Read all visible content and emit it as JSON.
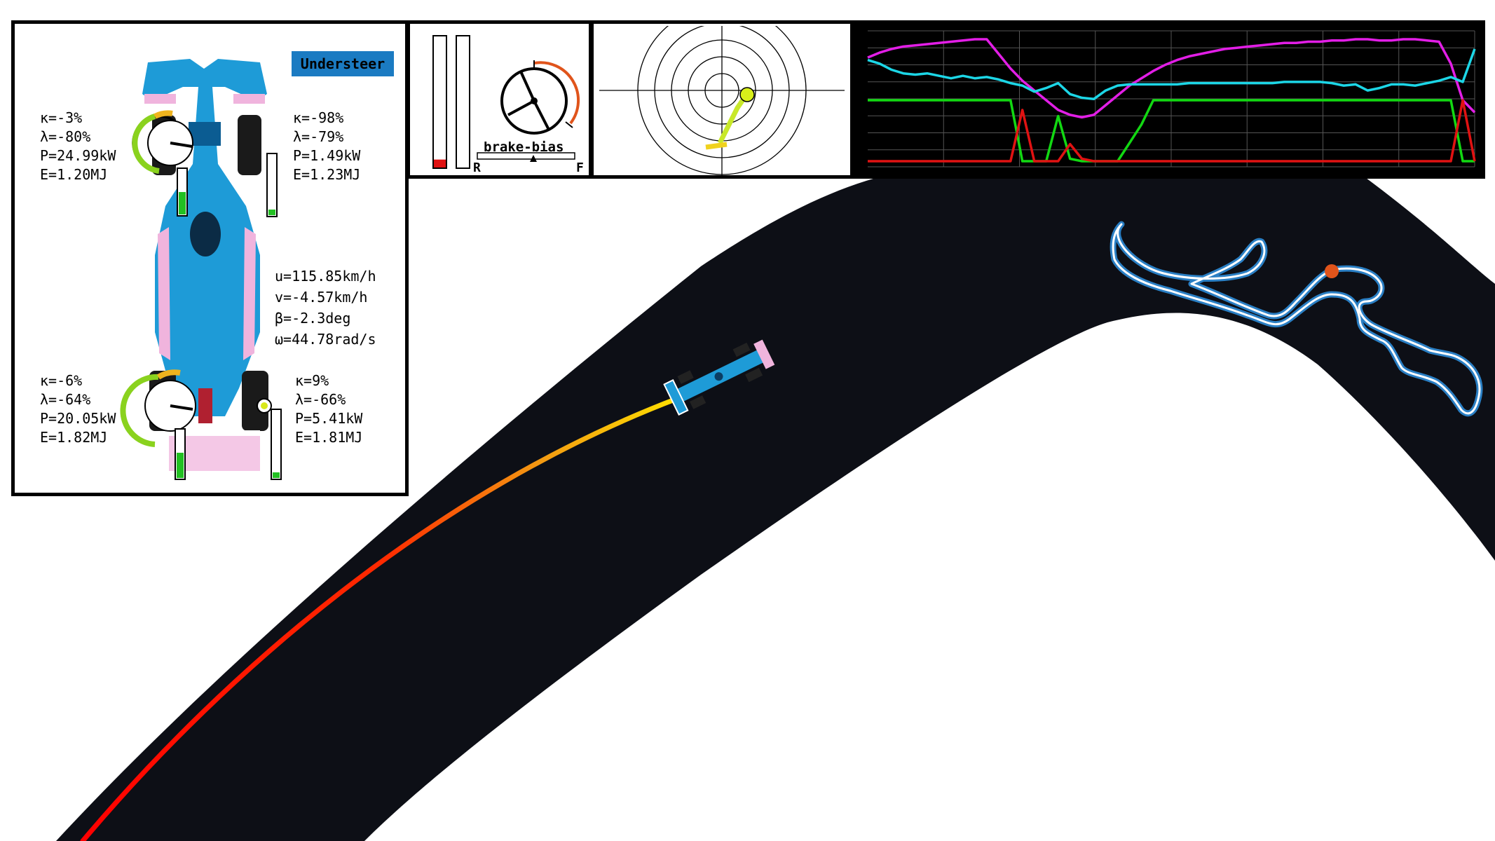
{
  "understeer_badge": "Understeer",
  "tires": {
    "front_left": {
      "kappa": "κ=-3%",
      "lambda": "λ=-80%",
      "power": "P=24.99kW",
      "energy": "E=1.20MJ",
      "grip": 0.55
    },
    "front_right": {
      "kappa": "κ=-98%",
      "lambda": "λ=-79%",
      "power": "P=1.49kW",
      "energy": "E=1.23MJ",
      "grip": 0.0
    },
    "rear_left": {
      "kappa": "κ=-6%",
      "lambda": "λ=-64%",
      "power": "P=20.05kW",
      "energy": "E=1.82MJ",
      "grip": 0.45
    },
    "rear_right": {
      "kappa": "κ=9%",
      "lambda": "λ=-66%",
      "power": "P=5.41kW",
      "energy": "E=1.81MJ",
      "grip": 0.08
    }
  },
  "vehicle_state": {
    "u": "u=115.85km/h",
    "v": "v=-4.57km/h",
    "beta": "β=-2.3deg",
    "omega": "ω=44.78rad/s"
  },
  "pedals": {
    "brake_level": 0.06,
    "throttle_level": 0.0,
    "brake_bias_label": "brake-bias",
    "rear_label": "R",
    "front_label": "F"
  },
  "colors": {
    "track": "#0d0f16",
    "car_blue": "#1e9bd7",
    "car_pink": "#f0b4dd",
    "minimap_track": "#2a7fc4",
    "minimap_marker": "#e0541b",
    "badge": "#1b7bc2",
    "telemetry_magenta": "#e21ee6",
    "telemetry_cyan": "#1cd6e6",
    "telemetry_green": "#12d812",
    "telemetry_red": "#e01212"
  },
  "telemetry_series": [
    {
      "color": "#e21ee6",
      "values": [
        0.85,
        0.89,
        0.92,
        0.94,
        0.95,
        0.96,
        0.97,
        0.98,
        0.99,
        1.0,
        1.0,
        0.88,
        0.76,
        0.66,
        0.58,
        0.5,
        0.42,
        0.38,
        0.36,
        0.38,
        0.46,
        0.54,
        0.62,
        0.68,
        0.74,
        0.79,
        0.83,
        0.86,
        0.88,
        0.9,
        0.92,
        0.93,
        0.94,
        0.95,
        0.96,
        0.97,
        0.97,
        0.98,
        0.98,
        0.99,
        0.99,
        1.0,
        1.0,
        0.99,
        0.99,
        1.0,
        1.0,
        0.99,
        0.98,
        0.8,
        0.5,
        0.4
      ]
    },
    {
      "color": "#1cd6e6",
      "values": [
        0.83,
        0.8,
        0.75,
        0.72,
        0.71,
        0.72,
        0.7,
        0.68,
        0.7,
        0.68,
        0.69,
        0.67,
        0.64,
        0.62,
        0.57,
        0.6,
        0.64,
        0.55,
        0.52,
        0.51,
        0.58,
        0.62,
        0.63,
        0.63,
        0.63,
        0.63,
        0.63,
        0.64,
        0.64,
        0.64,
        0.64,
        0.64,
        0.64,
        0.64,
        0.64,
        0.65,
        0.65,
        0.65,
        0.65,
        0.64,
        0.62,
        0.63,
        0.58,
        0.6,
        0.63,
        0.63,
        0.62,
        0.64,
        0.66,
        0.69,
        0.65,
        0.92
      ]
    },
    {
      "color": "#12d812",
      "values": [
        0.5,
        0.5,
        0.5,
        0.5,
        0.5,
        0.5,
        0.5,
        0.5,
        0.5,
        0.5,
        0.5,
        0.5,
        0.5,
        0.0,
        0.0,
        0.0,
        0.37,
        0.02,
        0.0,
        0.0,
        0.0,
        0.0,
        0.15,
        0.3,
        0.5,
        0.5,
        0.5,
        0.5,
        0.5,
        0.5,
        0.5,
        0.5,
        0.5,
        0.5,
        0.5,
        0.5,
        0.5,
        0.5,
        0.5,
        0.5,
        0.5,
        0.5,
        0.5,
        0.5,
        0.5,
        0.5,
        0.5,
        0.5,
        0.5,
        0.5,
        0.0,
        0.0
      ]
    },
    {
      "color": "#e01212",
      "values": [
        0.0,
        0.0,
        0.0,
        0.0,
        0.0,
        0.0,
        0.0,
        0.0,
        0.0,
        0.0,
        0.0,
        0.0,
        0.0,
        0.42,
        0.0,
        0.0,
        0.0,
        0.14,
        0.02,
        0.0,
        0.0,
        0.0,
        0.0,
        0.0,
        0.0,
        0.0,
        0.0,
        0.0,
        0.0,
        0.0,
        0.0,
        0.0,
        0.0,
        0.0,
        0.0,
        0.0,
        0.0,
        0.0,
        0.0,
        0.0,
        0.0,
        0.0,
        0.0,
        0.0,
        0.0,
        0.0,
        0.0,
        0.0,
        0.0,
        0.0,
        0.5,
        0.0
      ]
    }
  ]
}
